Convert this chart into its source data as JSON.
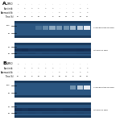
{
  "bg_color": "#ffffff",
  "blot_bg": "#2a5580",
  "blot_bg_dark": "#1a3a5c",
  "band_light": "#a8cce0",
  "band_dark": "#0d2a45",
  "title_A": "A.",
  "title_B": "B.",
  "row_labels": [
    "DMSO",
    "Sunitinib",
    "Abemaciclib",
    "Time (h)"
  ],
  "dmso_A": [
    "+",
    "-",
    "-",
    "-",
    "-",
    "-",
    "-",
    "-",
    "-",
    "-",
    "-"
  ],
  "sunit_A": [
    "-",
    "+",
    "+",
    "+",
    "+",
    "+",
    "-",
    "-",
    "-",
    "+",
    "+"
  ],
  "abema_A": [
    "-",
    "-",
    "-",
    "-",
    "-",
    "-",
    "+",
    "+",
    "+",
    "+",
    "+"
  ],
  "times_A": [
    "16",
    "24",
    "8",
    "16",
    "24",
    "8",
    "16",
    "24",
    "8",
    "16",
    "24"
  ],
  "dmso_B": [
    "+",
    "-",
    "-",
    "-",
    "-",
    "-",
    "-",
    "-",
    "-",
    "-",
    "-"
  ],
  "sunit_B": [
    "-",
    "+",
    "+",
    "+",
    "+",
    "+",
    "-",
    "-",
    "-",
    "+",
    "+"
  ],
  "abema_B": [
    "-",
    "-",
    "-",
    "-",
    "-",
    "-",
    "+",
    "+",
    "+",
    "+",
    "+"
  ],
  "times_B": [
    "16",
    "24",
    "8",
    "16",
    "24",
    "8",
    "16",
    "24",
    "8",
    "16",
    "24"
  ],
  "right_label_top_A": "Cleaved PARP 89 kDa",
  "right_label_bot_A": "GAPDH 37 kDa",
  "right_label_top_B": "Cleaved PARP 89 kDa",
  "right_label_bot_B": "GAPDH 37 kDa",
  "mw_top_A": [
    "100",
    "25"
  ],
  "mw_bot_A": [
    "50",
    "25"
  ],
  "mw_top_B": [
    "100",
    "25"
  ],
  "mw_bot_B": [
    "50",
    "25"
  ],
  "num_lanes": 11,
  "parp_bands_A": [
    3,
    4,
    5,
    6,
    7,
    8,
    9,
    10
  ],
  "parp_intens_A": [
    0.25,
    0.45,
    0.65,
    0.55,
    0.5,
    0.75,
    0.85,
    1.0
  ],
  "parp_bands_B": [
    8,
    9,
    10
  ],
  "parp_intens_B": [
    0.5,
    0.85,
    1.0
  ]
}
